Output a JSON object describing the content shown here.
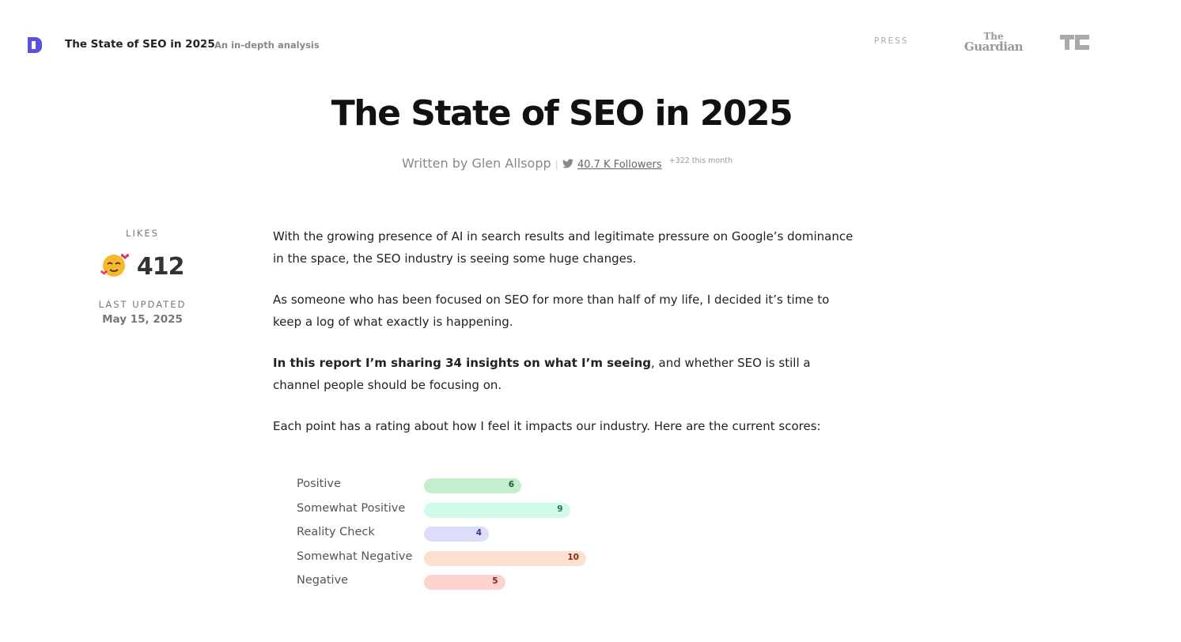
{
  "header": {
    "title": "The State of SEO in 2025",
    "separator": "|",
    "subtitle": "An in-depth analysis",
    "press_label": "PRESS",
    "press_logo": [
      "The",
      "Guardian"
    ]
  },
  "article": {
    "title": "The State of SEO in 2025",
    "byline": "Written by Glen Allsopp",
    "byline_separator": "|",
    "followers": "40.7 K Followers",
    "followers_change": "+322 this month"
  },
  "sidebar": {
    "likes_label": "LIKES",
    "likes_count": 412,
    "updated_label": "LAST UPDATED",
    "updated_date": "May 15, 2025"
  },
  "body": {
    "paragraphs": [
      "With the growing presence of AI in search results and legitimate pressure on Google’s dominance in the space, the SEO industry is seeing some huge changes.",
      "As someone who has been focused on SEO for more than half of my life, I decided it’s time to keep a log of what exactly is happening."
    ],
    "highlight_bold": "In this report I’m sharing 34 insights on what I’m seeing",
    "highlight_rest": ", and whether SEO is still a channel people should be focusing on.",
    "scores_intro": "Each point has a rating about how I feel it impacts our industry. Here are the current scores:"
  },
  "chart_data": {
    "type": "bar",
    "orientation": "horizontal",
    "categories": [
      "Positive",
      "Somewhat Positive",
      "Reality Check",
      "Somewhat Negative",
      "Negative"
    ],
    "values": [
      6,
      9,
      4,
      10,
      5
    ],
    "colors": [
      "#c5eecf",
      "#d0fbe9",
      "#dcdcfb",
      "#fde1d0",
      "#fdd2cf"
    ],
    "label_colors": [
      "#1f5f30",
      "#1c7a50",
      "#37378a",
      "#8a2a0c",
      "#8a1c1c"
    ],
    "xlim": [
      0,
      10
    ]
  }
}
